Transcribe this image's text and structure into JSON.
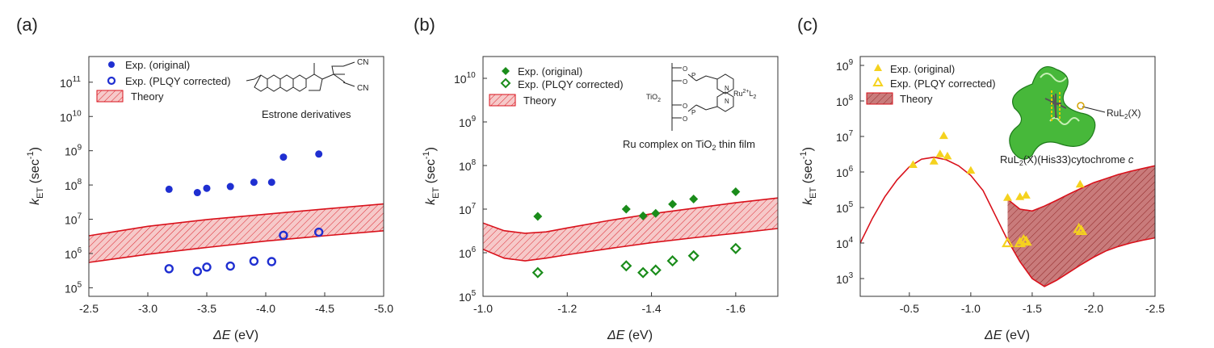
{
  "figure": {
    "panel_labels": [
      "(a)",
      "(b)",
      "(c)"
    ]
  },
  "colors": {
    "theory_line": "#d9111b",
    "theory_fill_a": "#f6c9c9",
    "theory_fill_c": "#c97b7b",
    "hatch": "#d9111b",
    "blue": "#1f2fd1",
    "green": "#1a8c1a",
    "yellow": "#f5d21e",
    "axis": "#333333"
  },
  "chart_data": [
    {
      "panel": "(a)",
      "type": "scatter",
      "xlabel_symbol": "ΔE",
      "xlabel_units": "(eV)",
      "ylabel_symbol": "k",
      "ylabel_sub": "ET",
      "ylabel_units_pre": "(sec",
      "ylabel_units_sup": "-1",
      "ylabel_units_post": ")",
      "xlim": [
        -2.5,
        -5.0
      ],
      "ylim_log10": [
        4.75,
        11.75
      ],
      "xticks": [
        -2.5,
        -3.0,
        -3.5,
        -4.0,
        -4.5,
        -5.0
      ],
      "xtick_labels": [
        "-2.5",
        "-3.0",
        "-3.5",
        "-4.0",
        "-4.5",
        "-5.0"
      ],
      "yticks_exp": [
        5,
        6,
        7,
        8,
        9,
        10,
        11
      ],
      "ytick_labels": [
        "10",
        "10",
        "10",
        "10",
        "10",
        "10",
        "10"
      ],
      "ytick_sups": [
        "5",
        "6",
        "7",
        "8",
        "9",
        "10",
        "11"
      ],
      "legend": [
        "Exp. (original)",
        "Exp. (PLQY corrected)",
        "Theory"
      ],
      "annotation": "Estrone derivatives",
      "inset_text": [
        "CN",
        "CN"
      ],
      "series": [
        {
          "name": "Exp. (original)",
          "marker": "filled-circle",
          "color": "blue",
          "x": [
            -3.18,
            -3.42,
            -3.5,
            -3.7,
            -3.9,
            -4.05,
            -4.15,
            -4.45
          ],
          "y": [
            75000000.0,
            60000000.0,
            80000000.0,
            90000000.0,
            120000000.0,
            120000000.0,
            650000000.0,
            800000000.0
          ]
        },
        {
          "name": "Exp. (PLQY corrected)",
          "marker": "open-circle",
          "color": "blue",
          "x": [
            -3.18,
            -3.42,
            -3.5,
            -3.7,
            -3.9,
            -4.05,
            -4.15,
            -4.45
          ],
          "y": [
            360000.0,
            300000.0,
            400000.0,
            430000.0,
            600000.0,
            580000.0,
            3400000.0,
            4200000.0
          ]
        }
      ],
      "theory_band": {
        "x": [
          -2.5,
          -3.0,
          -3.5,
          -4.0,
          -4.5,
          -5.0
        ],
        "lower": [
          550000.0,
          950000.0,
          1500000.0,
          2300000.0,
          3300000.0,
          4600000.0
        ],
        "upper": [
          3300000.0,
          6200000.0,
          9800000.0,
          14000000.0,
          20000000.0,
          28000000.0
        ]
      }
    },
    {
      "panel": "(b)",
      "type": "scatter",
      "xlabel_symbol": "ΔE",
      "xlabel_units": "(eV)",
      "ylabel_symbol": "k",
      "ylabel_sub": "ET",
      "ylabel_units_pre": "(sec",
      "ylabel_units_sup": "-1",
      "ylabel_units_post": ")",
      "xlim": [
        -1.0,
        -1.7
      ],
      "ylim_log10": [
        5.0,
        10.5
      ],
      "xticks": [
        -1.0,
        -1.2,
        -1.4,
        -1.6
      ],
      "xtick_labels": [
        "-1.0",
        "-1.2",
        "-1.4",
        "-1.6"
      ],
      "yticks_exp": [
        5,
        6,
        7,
        8,
        9,
        10
      ],
      "ytick_labels": [
        "10",
        "10",
        "10",
        "10",
        "10",
        "10"
      ],
      "ytick_sups": [
        "5",
        "6",
        "7",
        "8",
        "9",
        "10"
      ],
      "legend": [
        "Exp. (original)",
        "Exp. (PLQY corrected)",
        "Theory"
      ],
      "annotation_pre": "Ru complex on TiO",
      "annotation_sub": "2",
      "annotation_post": " thin film",
      "inset_text": [
        "TiO",
        "2",
        "Ru",
        "2+",
        "L",
        "2",
        "O",
        "O",
        "P",
        "O",
        "O",
        "P",
        "N",
        "N"
      ],
      "series": [
        {
          "name": "Exp. (original)",
          "marker": "filled-diamond",
          "color": "green",
          "x": [
            -1.13,
            -1.34,
            -1.38,
            -1.41,
            -1.45,
            -1.5,
            -1.6
          ],
          "y": [
            6800000.0,
            10000000.0,
            7000000.0,
            8000000.0,
            13000000.0,
            17000000.0,
            25000000.0
          ]
        },
        {
          "name": "Exp. (PLQY corrected)",
          "marker": "open-diamond",
          "color": "green",
          "x": [
            -1.13,
            -1.34,
            -1.38,
            -1.41,
            -1.45,
            -1.5,
            -1.6
          ],
          "y": [
            350000.0,
            500000.0,
            350000.0,
            400000.0,
            650000.0,
            850000.0,
            1250000.0
          ]
        }
      ],
      "theory_band": {
        "x": [
          -1.0,
          -1.05,
          -1.1,
          -1.15,
          -1.2,
          -1.3,
          -1.4,
          -1.5,
          -1.6,
          -1.7
        ],
        "lower": [
          1200000.0,
          750000.0,
          650000.0,
          750000.0,
          900000.0,
          1250000.0,
          1700000.0,
          2200000.0,
          2800000.0,
          3600000.0
        ],
        "upper": [
          4800000.0,
          3200000.0,
          2800000.0,
          3000000.0,
          3700000.0,
          5500000.0,
          7800000.0,
          10500000.0,
          14000000.0,
          18000000.0
        ]
      }
    },
    {
      "panel": "(c)",
      "type": "scatter",
      "xlabel_symbol": "ΔE",
      "xlabel_units": "(eV)",
      "ylabel_symbol": "k",
      "ylabel_sub": "ET",
      "ylabel_units_pre": "(sec",
      "ylabel_units_sup": "-1",
      "ylabel_units_post": ")",
      "xlim": [
        -0.1,
        -2.5
      ],
      "ylim_log10": [
        2.5,
        9.25
      ],
      "xticks": [
        -0.5,
        -1.0,
        -1.5,
        -2.0,
        -2.5
      ],
      "xtick_labels": [
        "-0.5",
        "-1.0",
        "-1.5",
        "-2.0",
        "-2.5"
      ],
      "yticks_exp": [
        3,
        4,
        5,
        6,
        7,
        8,
        9
      ],
      "ytick_labels": [
        "10",
        "10",
        "10",
        "10",
        "10",
        "10",
        "10"
      ],
      "ytick_sups": [
        "3",
        "4",
        "5",
        "6",
        "7",
        "8",
        "9"
      ],
      "legend": [
        "Exp. (original)",
        "Exp. (PLQY corrected)",
        "Theory"
      ],
      "annotation_pre": "RuL",
      "annotation_sub": "2",
      "annotation_post": "(X)(His33)cytochrome ",
      "annotation_italic": "c",
      "inset_label_pre": "RuL",
      "inset_label_sub": "2",
      "inset_label_post": "(X)",
      "series": [
        {
          "name": "Exp. (original)",
          "marker": "filled-triangle",
          "color": "yellow",
          "x": [
            -0.53,
            -0.7,
            -0.75,
            -0.78,
            -0.81,
            -1.0,
            -1.3,
            -1.4,
            -1.45,
            -1.89
          ],
          "y": [
            1600000.0,
            2000000.0,
            3200000.0,
            10500000.0,
            2800000.0,
            1100000.0,
            190000.0,
            200000.0,
            220000.0,
            450000.0
          ]
        },
        {
          "name": "Exp. (PLQY corrected)",
          "marker": "open-triangle",
          "color": "yellow",
          "x": [
            -1.3,
            -1.4,
            -1.43,
            -1.45,
            -1.88,
            -1.9
          ],
          "y": [
            10000.0,
            10000.0,
            12000.0,
            11000.0,
            25000.0,
            22000.0
          ]
        }
      ],
      "theory_lower": {
        "x": [
          -0.1,
          -0.2,
          -0.3,
          -0.4,
          -0.5,
          -0.6,
          -0.7,
          -0.8,
          -0.9,
          -1.0,
          -1.1,
          -1.2,
          -1.3,
          -1.4,
          -1.5,
          -1.6,
          -1.7,
          -1.8,
          -1.9,
          -2.0,
          -2.1,
          -2.2,
          -2.3,
          -2.4,
          -2.5
        ],
        "y": [
          10000.0,
          50000.0,
          200000.0,
          600000.0,
          1400000.0,
          2300000.0,
          2600000.0,
          2200000.0,
          1500000.0,
          800000.0,
          300000.0,
          60000.0,
          12000.0,
          3000.0,
          1000.0,
          600.0,
          900.0,
          1500.0,
          2500.0,
          4000.0,
          6000.0,
          8000.0,
          10000.0,
          12000.0,
          14000.0
        ]
      },
      "theory_upper": {
        "x": [
          -1.3,
          -1.4,
          -1.5,
          -1.6,
          -1.7,
          -1.8,
          -1.9,
          -2.0,
          -2.1,
          -2.2,
          -2.3,
          -2.4,
          -2.5
        ],
        "y": [
          170000.0,
          90000.0,
          80000.0,
          110000.0,
          160000.0,
          240000.0,
          350000.0,
          500000.0,
          650000.0,
          850000.0,
          1050000.0,
          1250000.0,
          1500000.0
        ]
      }
    }
  ]
}
